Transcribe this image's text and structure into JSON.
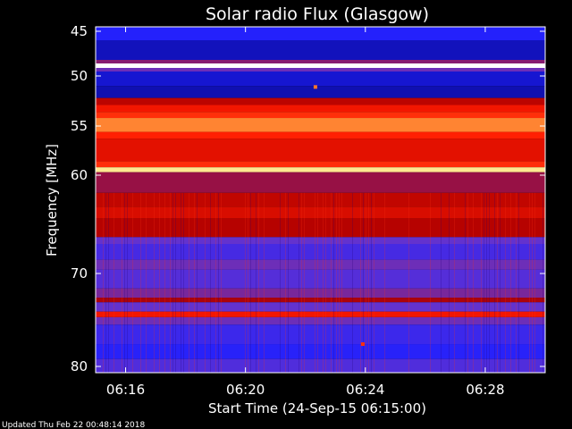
{
  "chart_data": {
    "type": "heatmap",
    "title": "Solar radio Flux (Glasgow)",
    "xlabel": "Start Time (24-Sep-15 06:15:00)",
    "ylabel": "Frequency [MHz]",
    "x_unit": "time (HH:MM)",
    "y_unit": "MHz",
    "xlim": [
      "06:15:00",
      "06:30:00"
    ],
    "ylim": [
      80.4,
      44.4
    ],
    "y_inverted": true,
    "x_ticks": [
      "06:16",
      "06:20",
      "06:24",
      "06:28"
    ],
    "y_ticks": [
      45,
      50,
      55,
      60,
      70,
      80
    ],
    "colormap": [
      "#000066",
      "#2020ff",
      "#6633cc",
      "#b00000",
      "#ff1a00",
      "#ff8030",
      "#ffe060",
      "#ffffff"
    ],
    "frequency_bands": [
      {
        "from": 44.4,
        "to": 46.0,
        "level": 0.15
      },
      {
        "from": 46.0,
        "to": 48.2,
        "level": 0.08
      },
      {
        "from": 48.2,
        "to": 48.6,
        "level": 0.35
      },
      {
        "from": 48.6,
        "to": 49.1,
        "level": 1.0
      },
      {
        "from": 49.1,
        "to": 49.5,
        "level": 0.3
      },
      {
        "from": 49.5,
        "to": 51.0,
        "level": 0.1
      },
      {
        "from": 51.0,
        "to": 52.2,
        "level": 0.07
      },
      {
        "from": 52.2,
        "to": 52.9,
        "level": 0.45
      },
      {
        "from": 52.9,
        "to": 53.6,
        "level": 0.55
      },
      {
        "from": 53.6,
        "to": 54.2,
        "level": 0.6
      },
      {
        "from": 54.2,
        "to": 55.6,
        "level": 0.72
      },
      {
        "from": 55.6,
        "to": 56.3,
        "level": 0.58
      },
      {
        "from": 56.3,
        "to": 58.6,
        "level": 0.52
      },
      {
        "from": 58.6,
        "to": 59.2,
        "level": 0.6
      },
      {
        "from": 59.2,
        "to": 59.7,
        "level": 0.9
      },
      {
        "from": 59.7,
        "to": 61.8,
        "level": 0.38
      },
      {
        "from": 61.8,
        "to": 63.2,
        "level": 0.46
      },
      {
        "from": 63.2,
        "to": 64.4,
        "level": 0.5
      },
      {
        "from": 64.4,
        "to": 66.3,
        "level": 0.44
      },
      {
        "from": 66.3,
        "to": 67.0,
        "level": 0.28
      },
      {
        "from": 67.0,
        "to": 68.6,
        "level": 0.22
      },
      {
        "from": 68.6,
        "to": 69.6,
        "level": 0.3
      },
      {
        "from": 69.6,
        "to": 71.6,
        "level": 0.25
      },
      {
        "from": 71.6,
        "to": 72.6,
        "level": 0.32
      },
      {
        "from": 72.6,
        "to": 73.1,
        "level": 0.42
      },
      {
        "from": 73.1,
        "to": 74.1,
        "level": 0.28
      },
      {
        "from": 74.1,
        "to": 74.7,
        "level": 0.55
      },
      {
        "from": 74.7,
        "to": 75.5,
        "level": 0.3
      },
      {
        "from": 75.5,
        "to": 77.6,
        "level": 0.2
      },
      {
        "from": 77.6,
        "to": 79.2,
        "level": 0.16
      },
      {
        "from": 79.2,
        "to": 80.4,
        "level": 0.24
      }
    ],
    "bursts": [
      {
        "time": "06:22:20",
        "freq": 51.1,
        "level": 0.7
      },
      {
        "time": "06:23:55",
        "freq": 77.6,
        "level": 0.6
      }
    ]
  },
  "footer": {
    "updated": "Updated Thu Feb 22 00:48:14 2018"
  }
}
